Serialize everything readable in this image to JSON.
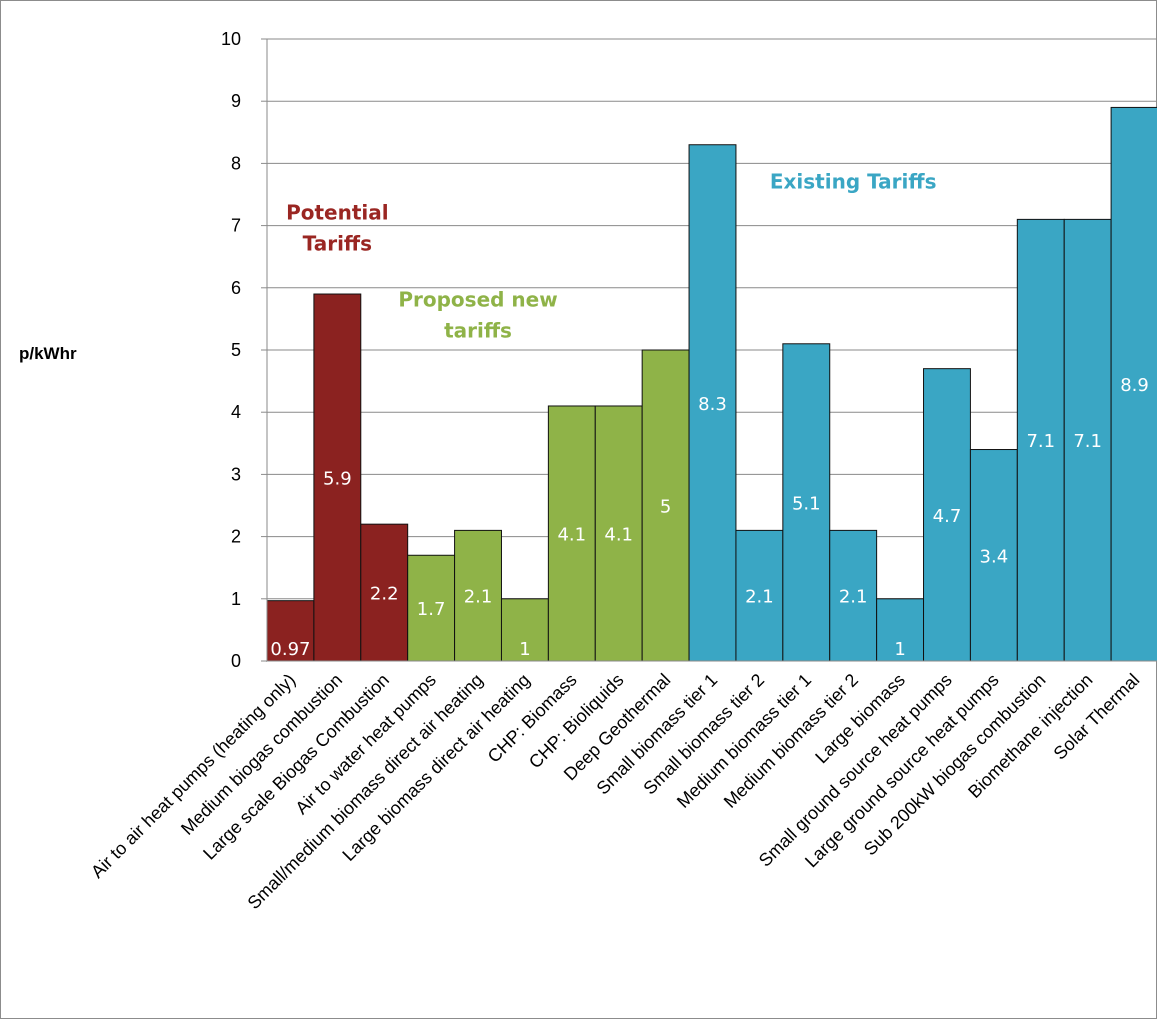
{
  "chart_data": {
    "type": "bar",
    "ylabel": "p/kWhr",
    "xlabel": "",
    "title": "",
    "ylim": [
      0,
      10
    ],
    "yticks": [
      0,
      1,
      2,
      3,
      4,
      5,
      6,
      7,
      8,
      9,
      10
    ],
    "grid": true,
    "categories": [
      "Air to air heat pumps (heating only)",
      "Medium biogas combustion",
      "Large scale Biogas Combustion",
      "Air to water heat pumps",
      "Small/medium biomass direct air heating",
      "Large biomass direct air heating",
      "CHP: Biomass",
      "CHP: Bioliquids",
      "Deep Geothermal",
      "Small biomass tier 1",
      "Small biomass tier 2",
      "Medium biomass tier 1",
      "Medium biomass tier 2",
      "Large biomass",
      "Small ground source heat pumps",
      "Large ground source heat pumps",
      "Sub 200kW biogas combustion",
      "Biomethane injection",
      "Solar Thermal"
    ],
    "values": [
      0.97,
      5.9,
      2.2,
      1.7,
      2.1,
      1,
      4.1,
      4.1,
      5,
      8.3,
      2.1,
      5.1,
      2.1,
      1,
      4.7,
      3.4,
      7.1,
      7.1,
      8.9
    ],
    "data_labels": [
      "0.97",
      "5.9",
      "2.2",
      "1.7",
      "2.1",
      "1",
      "4.1",
      "4.1",
      "5",
      "8.3",
      "2.1",
      "5.1",
      "2.1",
      "1",
      "4.7",
      "3.4",
      "7.1",
      "7.1",
      "8.9"
    ],
    "groups": [
      {
        "name": "Potential Tariffs",
        "color": "#8b2220",
        "start": 0,
        "end": 2
      },
      {
        "name": "Proposed new tariffs",
        "color": "#8fb348",
        "start": 3,
        "end": 8
      },
      {
        "name": "Existing Tariffs",
        "color": "#3aa6c4",
        "start": 9,
        "end": 18
      }
    ],
    "annotations": [
      {
        "text_lines": [
          "Potential",
          "Tariffs"
        ],
        "color": "#9a2622",
        "near_category": 1,
        "y_value": 7.1
      },
      {
        "text_lines": [
          "Proposed new",
          "tariffs"
        ],
        "color": "#8fb348",
        "near_category": 4,
        "y_value": 5.7
      },
      {
        "text_lines": [
          "Existing Tariffs"
        ],
        "color": "#3aa6c4",
        "near_category": 12,
        "y_value": 7.6
      }
    ]
  }
}
